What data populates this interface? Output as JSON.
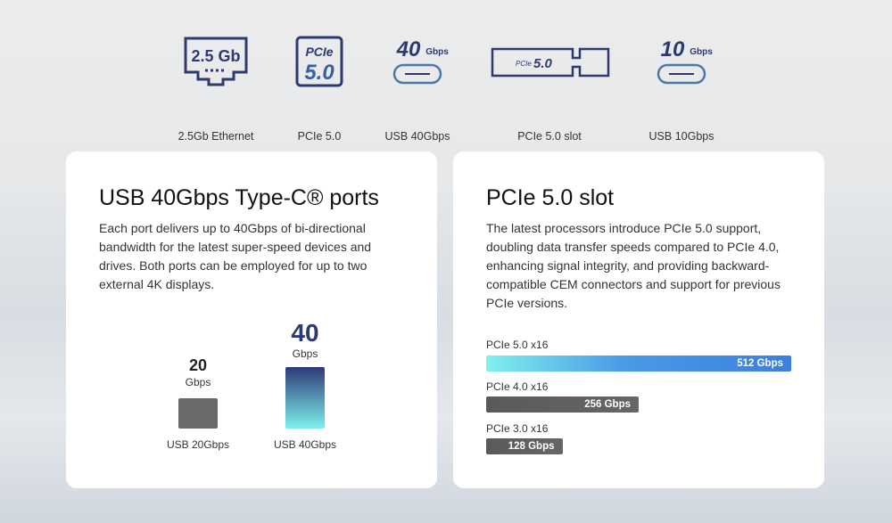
{
  "features": [
    {
      "icon": "ethernet-port-icon",
      "icon_text": "2.5 Gb",
      "label": "2.5Gb Ethernet"
    },
    {
      "icon": "pcie-chip-icon",
      "icon_text": "PCIe 5.0",
      "label": "PCIe 5.0"
    },
    {
      "icon": "usb-c-port-icon",
      "icon_text": "40 Gbps",
      "label": "USB 40Gbps"
    },
    {
      "icon": "pcie-slot-icon",
      "icon_text": "PCIe 5.0",
      "label": "PCIe 5.0 slot"
    },
    {
      "icon": "usb-c-port-icon",
      "icon_text": "10 Gbps",
      "label": "USB 10Gbps"
    }
  ],
  "usb_card": {
    "title": "USB 40Gbps Type-C® ports",
    "body": "Each port delivers up to 40Gbps of bi-directional bandwidth for the latest super-speed devices and drives. Both ports can be employed for up to two external 4K displays.",
    "chart_data": {
      "type": "bar",
      "categories": [
        "USB 20Gbps",
        "USB 40Gbps"
      ],
      "values": [
        20,
        40
      ],
      "value_labels": [
        "20",
        "40"
      ],
      "unit": "Gbps",
      "colors": [
        "#6a6a6a",
        "gradient #2e3a78→#7ff0ee"
      ]
    }
  },
  "pcie_card": {
    "title": "PCIe 5.0 slot",
    "body": "The latest processors introduce PCIe 5.0 support, doubling data transfer speeds compared to PCIe 4.0, enhancing signal integrity, and providing backward-compatible CEM connectors and support for previous PCIe versions.",
    "chart_data": {
      "type": "bar",
      "orientation": "horizontal",
      "categories": [
        "PCIe 5.0 x16",
        "PCIe 4.0 x16",
        "PCIe 3.0 x16"
      ],
      "values": [
        512,
        256,
        128
      ],
      "value_labels": [
        "512 Gbps",
        "256 Gbps",
        "128 Gbps"
      ],
      "colors": [
        "gradient #7ff0ee→#3b7fe0",
        "#5a5a5a",
        "#5a5a5a"
      ]
    }
  }
}
